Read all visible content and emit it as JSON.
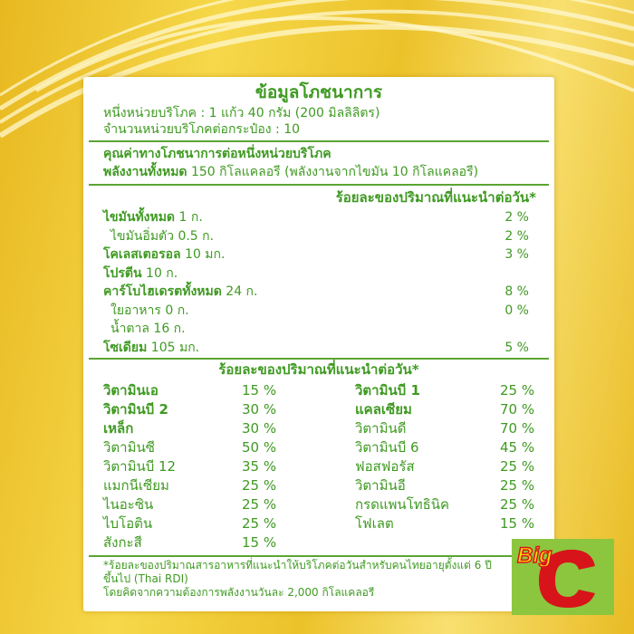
{
  "label": {
    "title": "ข้อมูลโภชนาการ",
    "serving_size": "หนึ่งหน่วยบริโภค : 1 แก้ว 40 กรัม (200 มิลลิลิตร)",
    "servings_per_container": "จำนวนหน่วยบริโภคต่อกระป๋อง : 10",
    "per_serving_heading": "คุณค่าทางโภชนาการต่อหนึ่งหน่วยบริโภค",
    "energy_label": "พลังงานทั้งหมด",
    "energy_value": "150 กิโลแคลอรี (พลังงานจากไขมัน 10 กิโลแคลอรี)",
    "rdi_heading": "ร้อยละของปริมาณที่แนะนำต่อวัน*",
    "nutrients": [
      {
        "name": "ไขมันทั้งหมด",
        "amount": "1 ก.",
        "pct": "2 %",
        "bold": true,
        "indent": false
      },
      {
        "name": "ไขมันอิ่มตัว",
        "amount": "0.5 ก.",
        "pct": "2 %",
        "bold": false,
        "indent": true
      },
      {
        "name": "โคเลสเตอรอล",
        "amount": "10 มก.",
        "pct": "3 %",
        "bold": true,
        "indent": false
      },
      {
        "name": "โปรตีน",
        "amount": "10 ก.",
        "pct": "",
        "bold": true,
        "indent": false
      },
      {
        "name": "คาร์โบไฮเดรตทั้งหมด",
        "amount": "24 ก.",
        "pct": "8 %",
        "bold": true,
        "indent": false
      },
      {
        "name": "ใยอาหาร",
        "amount": "0 ก.",
        "pct": "0 %",
        "bold": false,
        "indent": true
      },
      {
        "name": "น้ำตาล",
        "amount": "16 ก.",
        "pct": "",
        "bold": false,
        "indent": true
      },
      {
        "name": "โซเดียม",
        "amount": "105 มก.",
        "pct": "5 %",
        "bold": true,
        "indent": false
      }
    ],
    "vitamins_heading": "ร้อยละของปริมาณที่แนะนำต่อวัน*",
    "vitamins_left": [
      {
        "name": "วิตามินเอ",
        "pct": "15 %",
        "bold": true
      },
      {
        "name": "วิตามินบี 2",
        "pct": "30 %",
        "bold": true
      },
      {
        "name": "เหล็ก",
        "pct": "30 %",
        "bold": true
      },
      {
        "name": "วิตามินซี",
        "pct": "50 %",
        "bold": false
      },
      {
        "name": "วิตามินบี 12",
        "pct": "35 %",
        "bold": false
      },
      {
        "name": "แมกนีเซียม",
        "pct": "25 %",
        "bold": false
      },
      {
        "name": "ไนอะซิน",
        "pct": "25 %",
        "bold": false
      },
      {
        "name": "ไบโอติน",
        "pct": "25 %",
        "bold": false
      },
      {
        "name": "สังกะสี",
        "pct": "15 %",
        "bold": false
      }
    ],
    "vitamins_right": [
      {
        "name": "วิตามินบี 1",
        "pct": "25 %",
        "bold": true
      },
      {
        "name": "แคลเซียม",
        "pct": "70 %",
        "bold": true
      },
      {
        "name": "วิตามินดี",
        "pct": "70 %",
        "bold": false
      },
      {
        "name": "วิตามินบี 6",
        "pct": "45 %",
        "bold": false
      },
      {
        "name": "ฟอสฟอรัส",
        "pct": "25 %",
        "bold": false
      },
      {
        "name": "วิตามินอี",
        "pct": "25 %",
        "bold": false
      },
      {
        "name": "กรดแพนโทธินิค",
        "pct": "25 %",
        "bold": false
      },
      {
        "name": "โฟเลต",
        "pct": "15 %",
        "bold": false
      }
    ],
    "footnote_1": "*ร้อยละของปริมาณสารอาหารที่แนะนำให้บริโภคต่อวันสำหรับคนไทยอายุตั้งแต่ 6 ปีขึ้นไป (Thai RDI)",
    "footnote_2": "โดยคิดจากความต้องการพลังงานวันละ 2,000 กิโลแคลอรี"
  },
  "logo": {
    "text_top": "Big",
    "text_main": "C",
    "colors": {
      "bg": "#8cc63f",
      "c": "#d7141a",
      "big": "#ffe000"
    }
  },
  "colors": {
    "text": "#3f9a22",
    "background": "#f0c83a"
  }
}
